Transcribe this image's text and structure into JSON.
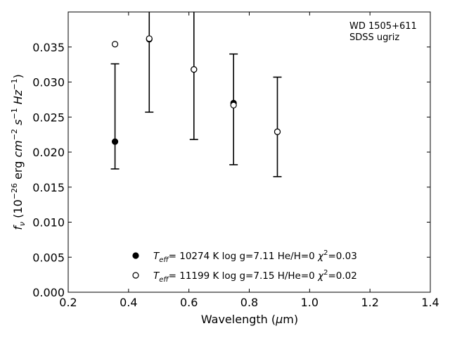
{
  "chart_data": {
    "type": "scatter",
    "xlabel": "Wavelength (μm)",
    "ylabel": "f_ν (10^-26 erg cm^-2 s^-1 Hz^-1)",
    "xlim": [
      0.2,
      1.4
    ],
    "ylim": [
      0.0,
      0.04
    ],
    "x_ticks": [
      0.2,
      0.4,
      0.6,
      0.8,
      1.0,
      1.2,
      1.4
    ],
    "x_tick_labels": [
      "0.2",
      "0.4",
      "0.6",
      "0.8",
      "1.0",
      "1.2",
      "1.4"
    ],
    "y_ticks": [
      0.0,
      0.005,
      0.01,
      0.015,
      0.02,
      0.025,
      0.03,
      0.035
    ],
    "y_tick_labels": [
      "0.000",
      "0.005",
      "0.010",
      "0.015",
      "0.020",
      "0.025",
      "0.030",
      "0.035"
    ],
    "grid": false,
    "annotation_lines": [
      "WD 1505+611",
      "SDSS ugriz"
    ],
    "observed": {
      "x": [
        0.3551,
        0.4686,
        0.6166,
        0.748,
        0.8932
      ],
      "y": [
        0.0215,
        0.036,
        0.0318,
        0.0268,
        0.0229
      ],
      "y_low": [
        0.0176,
        0.0257,
        0.0218,
        0.0182,
        0.0165
      ],
      "y_high": [
        0.0326,
        0.0462,
        0.0418,
        0.034,
        0.0307
      ]
    },
    "series": [
      {
        "marker": "filled-circle",
        "x": [
          0.3551,
          0.4686,
          0.6166,
          0.748,
          0.8932
        ],
        "y": [
          0.0215,
          0.0361,
          0.0318,
          0.027,
          0.0229
        ]
      },
      {
        "marker": "open-circle",
        "x": [
          0.3551,
          0.4686,
          0.6166,
          0.748,
          0.8932
        ],
        "y": [
          0.0354,
          0.0362,
          0.0318,
          0.0267,
          0.0229
        ]
      }
    ],
    "legend": {
      "position": "bottom-center",
      "entries": [
        {
          "marker": "filled-circle",
          "teff": "10274",
          "logg": "7.11",
          "comp": "He/H=0",
          "chi2": "0.03"
        },
        {
          "marker": "open-circle",
          "teff": "11199",
          "logg": "7.15",
          "comp": "H/He=0",
          "chi2": "0.02"
        }
      ]
    }
  }
}
